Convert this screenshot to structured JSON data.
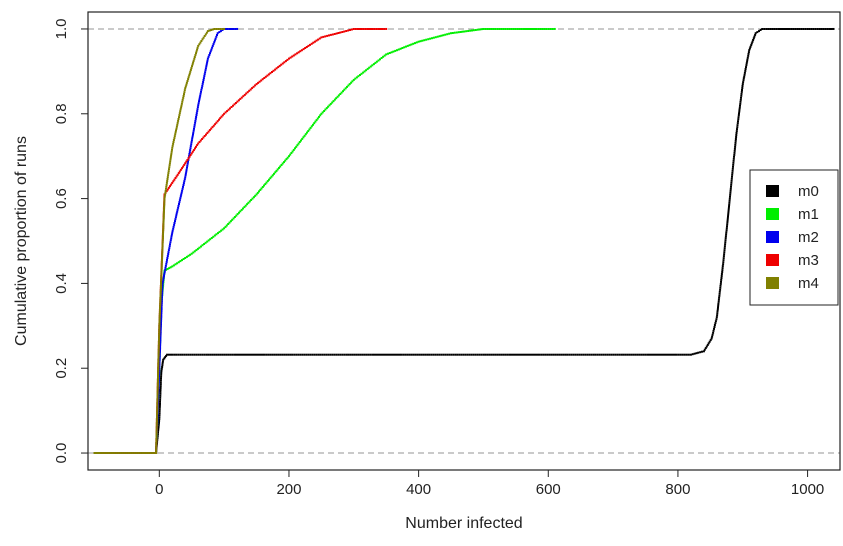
{
  "chart_data": {
    "type": "scatter",
    "title": "",
    "xlabel": "Number infected",
    "ylabel": "Cumulative proportion of runs",
    "xlim": [
      -110,
      1050
    ],
    "ylim": [
      -0.04,
      1.04
    ],
    "x_ticks": [
      0,
      200,
      400,
      600,
      800,
      1000
    ],
    "y_ticks": [
      0.0,
      0.2,
      0.4,
      0.6,
      0.8,
      1.0
    ],
    "x_tick_labels": [
      "0",
      "200",
      "400",
      "600",
      "800",
      "1000"
    ],
    "y_tick_labels": [
      "0.0",
      "0.2",
      "0.4",
      "0.6",
      "0.8",
      "1.0"
    ],
    "reference_lines": [
      0.0,
      1.0
    ],
    "point_spacing": 2,
    "legend_position": "right",
    "series": [
      {
        "name": "m0",
        "color": "#000000",
        "points": [
          [
            -100,
            0
          ],
          [
            -5,
            0
          ],
          [
            0,
            0.08
          ],
          [
            3,
            0.19
          ],
          [
            6,
            0.22
          ],
          [
            12,
            0.232
          ],
          [
            30,
            0.232
          ],
          [
            820,
            0.232
          ],
          [
            840,
            0.24
          ],
          [
            852,
            0.27
          ],
          [
            860,
            0.32
          ],
          [
            870,
            0.45
          ],
          [
            880,
            0.6
          ],
          [
            890,
            0.75
          ],
          [
            900,
            0.87
          ],
          [
            910,
            0.95
          ],
          [
            920,
            0.99
          ],
          [
            930,
            1.0
          ],
          [
            1040,
            1.0
          ]
        ]
      },
      {
        "name": "m1",
        "color": "#00ee00",
        "points": [
          [
            -100,
            0
          ],
          [
            -5,
            0
          ],
          [
            0,
            0.2
          ],
          [
            3,
            0.35
          ],
          [
            8,
            0.43
          ],
          [
            20,
            0.44
          ],
          [
            50,
            0.47
          ],
          [
            100,
            0.53
          ],
          [
            150,
            0.61
          ],
          [
            200,
            0.7
          ],
          [
            250,
            0.8
          ],
          [
            300,
            0.88
          ],
          [
            350,
            0.94
          ],
          [
            400,
            0.97
          ],
          [
            450,
            0.99
          ],
          [
            500,
            1.0
          ],
          [
            610,
            1.0
          ]
        ]
      },
      {
        "name": "m2",
        "color": "#0000ee",
        "points": [
          [
            -100,
            0
          ],
          [
            -5,
            0
          ],
          [
            0,
            0.2
          ],
          [
            5,
            0.4
          ],
          [
            20,
            0.52
          ],
          [
            40,
            0.65
          ],
          [
            60,
            0.82
          ],
          [
            75,
            0.93
          ],
          [
            90,
            0.99
          ],
          [
            100,
            1.0
          ],
          [
            120,
            1.0
          ]
        ]
      },
      {
        "name": "m3",
        "color": "#ee0000",
        "points": [
          [
            -100,
            0
          ],
          [
            -5,
            0
          ],
          [
            0,
            0.3
          ],
          [
            8,
            0.61
          ],
          [
            30,
            0.66
          ],
          [
            60,
            0.73
          ],
          [
            100,
            0.8
          ],
          [
            150,
            0.87
          ],
          [
            200,
            0.93
          ],
          [
            250,
            0.98
          ],
          [
            300,
            1.0
          ],
          [
            350,
            1.0
          ]
        ]
      },
      {
        "name": "m4",
        "color": "#808000",
        "points": [
          [
            -100,
            0
          ],
          [
            -5,
            0
          ],
          [
            0,
            0.3
          ],
          [
            8,
            0.6
          ],
          [
            20,
            0.72
          ],
          [
            40,
            0.86
          ],
          [
            60,
            0.96
          ],
          [
            75,
            0.995
          ],
          [
            85,
            1.0
          ],
          [
            100,
            1.0
          ]
        ]
      }
    ]
  }
}
